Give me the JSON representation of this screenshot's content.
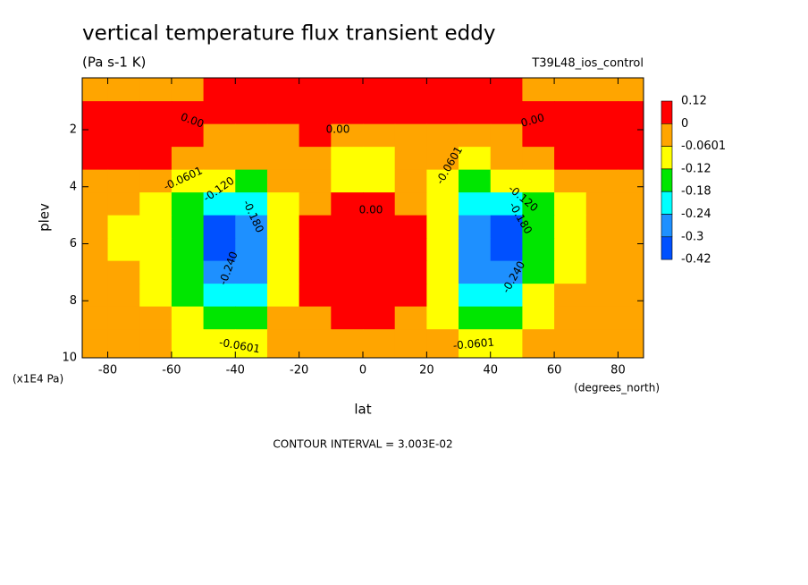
{
  "chart_data": {
    "type": "contour",
    "title": "vertical temperature flux transient eddy",
    "subtitle": "(Pa s-1 K)",
    "dataset": "T39L48_ios_control",
    "x_label": "lat",
    "y_label": "plev",
    "x_units": "(degrees_north)",
    "y_units": "(x1E4 Pa)",
    "footer": "CONTOUR INTERVAL = 3.003E-02",
    "xlim": [
      -88,
      88
    ],
    "ylim": [
      0.18,
      10
    ],
    "y_inverted": true,
    "xticks": [
      -80,
      -60,
      -40,
      -20,
      0,
      20,
      40,
      60,
      80
    ],
    "yticks": [
      2,
      4,
      6,
      8,
      10
    ],
    "levels": [
      0.12,
      0,
      -0.0601,
      -0.12,
      -0.18,
      -0.24,
      -0.3,
      -0.42
    ],
    "colors": [
      "#ff0000",
      "#ffa500",
      "#ffff00",
      "#00e600",
      "#00ffff",
      "#1e90ff",
      "#0050ff"
    ],
    "contour_labels": [
      "0.00",
      "0.00",
      "0.00",
      "0.00",
      "-0.0601",
      "-0.0601",
      "-0.0601",
      "-0.0601",
      "-0.120",
      "-0.120",
      "-0.180",
      "-0.180",
      "-0.240",
      "-0.240"
    ],
    "x": [
      -85,
      -75,
      -65,
      -55,
      -45,
      -35,
      -25,
      -15,
      -5,
      5,
      15,
      25,
      35,
      45,
      55,
      65,
      75,
      85
    ],
    "y": [
      0.6,
      1.4,
      2.2,
      3.0,
      3.8,
      4.6,
      5.4,
      6.2,
      7.0,
      7.8,
      8.6,
      9.4
    ],
    "z": [
      [
        -0.02,
        -0.02,
        -0.02,
        -0.02,
        0.03,
        0.03,
        0.03,
        0.03,
        0.03,
        0.03,
        0.03,
        0.03,
        0.03,
        0.03,
        -0.02,
        -0.02,
        -0.02,
        -0.02
      ],
      [
        0.01,
        0.01,
        0.01,
        0.01,
        0.04,
        0.04,
        0.04,
        0.04,
        0.04,
        0.04,
        0.04,
        0.04,
        0.04,
        0.04,
        0.02,
        0.02,
        0.02,
        0.02
      ],
      [
        0.03,
        0.03,
        0.03,
        0.03,
        -0.01,
        -0.005,
        -0.005,
        0.002,
        -0.01,
        -0.01,
        -0.01,
        -0.01,
        -0.01,
        -0.01,
        0.02,
        0.02,
        0.02,
        0.02
      ],
      [
        0.01,
        0.01,
        0.01,
        -0.005,
        -0.02,
        -0.03,
        -0.04,
        -0.03,
        -0.065,
        -0.065,
        -0.03,
        -0.06,
        -0.08,
        -0.03,
        -0.005,
        0.01,
        0.01,
        0.01
      ],
      [
        -0.02,
        -0.03,
        -0.05,
        -0.07,
        -0.1,
        -0.14,
        -0.05,
        -0.03,
        -0.065,
        -0.065,
        -0.03,
        -0.09,
        -0.15,
        -0.11,
        -0.07,
        -0.04,
        -0.02,
        -0.01
      ],
      [
        -0.03,
        -0.05,
        -0.08,
        -0.13,
        -0.2,
        -0.19,
        -0.07,
        -0.02,
        0.01,
        0.01,
        -0.02,
        -0.08,
        -0.2,
        -0.22,
        -0.13,
        -0.08,
        -0.04,
        -0.03
      ],
      [
        -0.04,
        -0.07,
        -0.1,
        -0.16,
        -0.32,
        -0.28,
        -0.09,
        0.02,
        0.04,
        0.04,
        0.02,
        -0.09,
        -0.28,
        -0.33,
        -0.17,
        -0.1,
        -0.06,
        -0.04
      ],
      [
        -0.04,
        -0.07,
        -0.11,
        -0.17,
        -0.36,
        -0.29,
        -0.1,
        0.02,
        0.05,
        0.05,
        0.02,
        -0.1,
        -0.3,
        -0.36,
        -0.16,
        -0.09,
        -0.06,
        -0.04
      ],
      [
        -0.04,
        -0.06,
        -0.1,
        -0.15,
        -0.26,
        -0.25,
        -0.08,
        0.01,
        0.03,
        0.03,
        0.01,
        -0.1,
        -0.25,
        -0.26,
        -0.14,
        -0.08,
        -0.05,
        -0.04
      ],
      [
        -0.03,
        -0.05,
        -0.08,
        -0.13,
        -0.2,
        -0.19,
        -0.07,
        0.005,
        0.02,
        0.02,
        0.005,
        -0.08,
        -0.2,
        -0.19,
        -0.12,
        -0.06,
        -0.04,
        -0.03
      ],
      [
        -0.02,
        -0.04,
        -0.06,
        -0.1,
        -0.15,
        -0.14,
        -0.05,
        -0.01,
        0.005,
        0.005,
        -0.01,
        -0.07,
        -0.14,
        -0.14,
        -0.09,
        -0.05,
        -0.03,
        -0.02
      ],
      [
        -0.02,
        -0.03,
        -0.04,
        -0.07,
        -0.09,
        -0.08,
        -0.04,
        -0.02,
        -0.01,
        -0.01,
        -0.02,
        -0.05,
        -0.08,
        -0.09,
        -0.06,
        -0.04,
        -0.02,
        -0.02
      ]
    ]
  }
}
